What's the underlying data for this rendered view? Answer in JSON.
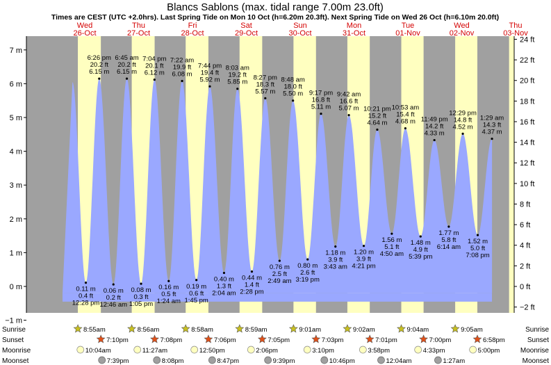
{
  "chart_data": {
    "type": "area",
    "title": "Blancs Sablons (max. tidal range 7.00m 23.0ft)",
    "subtitle": "Times are CEST (UTC +2.0hrs). Last Spring Tide on Mon 10 Oct (h=6.20m 20.3ft). Next Spring Tide on Wed 26 Oct (h=6.10m 20.0ft)",
    "days": [
      {
        "name": "Wed",
        "date": "26-Oct"
      },
      {
        "name": "Thu",
        "date": "27-Oct"
      },
      {
        "name": "Fri",
        "date": "28-Oct"
      },
      {
        "name": "Sat",
        "date": "29-Oct"
      },
      {
        "name": "Sun",
        "date": "30-Oct"
      },
      {
        "name": "Mon",
        "date": "31-Oct"
      },
      {
        "name": "Tue",
        "date": "01-Nov"
      },
      {
        "name": "Wed",
        "date": "02-Nov"
      },
      {
        "name": "Thu",
        "date": "03-Nov"
      }
    ],
    "y_left_ticks": [
      "−1 m",
      "0 m",
      "1 m",
      "2 m",
      "3 m",
      "4 m",
      "5 m",
      "6 m",
      "7 m"
    ],
    "y_right_ticks": [
      "−2 ft",
      "0 ft",
      "2 ft",
      "4 ft",
      "6 ft",
      "8 ft",
      "10 ft",
      "12 ft",
      "14 ft",
      "16 ft",
      "18 ft",
      "20 ft",
      "22 ft",
      "24 ft"
    ],
    "ylim_m": [
      -1.2,
      7.4
    ],
    "tides": [
      {
        "type": "high",
        "day": 0,
        "h": 6.15,
        "time": "6:26 pm",
        "m": "6.15 m",
        "ft": "20.2 ft"
      },
      {
        "type": "low",
        "day": 0,
        "h": 0.11,
        "time": "12:28 pm",
        "m": "0.11 m",
        "ft": "0.4 ft"
      },
      {
        "type": "high",
        "day": 1,
        "h": 6.15,
        "time": "6:45 am",
        "m": "6.15 m",
        "ft": "20.2 ft"
      },
      {
        "type": "low",
        "day": 1,
        "h": 0.06,
        "time": "12:46 am",
        "m": "0.06 m",
        "ft": "0.2 ft"
      },
      {
        "type": "high",
        "day": 1,
        "h": 6.12,
        "time": "7:04 pm",
        "m": "6.12 m",
        "ft": "20.1 ft"
      },
      {
        "type": "low",
        "day": 1,
        "h": 0.08,
        "time": "1:05 pm",
        "m": "0.08 m",
        "ft": "0.3 ft"
      },
      {
        "type": "high",
        "day": 2,
        "h": 6.08,
        "time": "7:22 am",
        "m": "6.08 m",
        "ft": "19.9 ft"
      },
      {
        "type": "low",
        "day": 2,
        "h": 0.16,
        "time": "1:24 am",
        "m": "0.16 m",
        "ft": "0.5 ft"
      },
      {
        "type": "high",
        "day": 2,
        "h": 5.92,
        "time": "7:44 pm",
        "m": "5.92 m",
        "ft": "19.4 ft"
      },
      {
        "type": "low",
        "day": 2,
        "h": 0.19,
        "time": "1:45 pm",
        "m": "0.19 m",
        "ft": "0.6 ft"
      },
      {
        "type": "high",
        "day": 3,
        "h": 5.85,
        "time": "8:03 am",
        "m": "5.85 m",
        "ft": "19.2 ft"
      },
      {
        "type": "low",
        "day": 3,
        "h": 0.4,
        "time": "2:04 am",
        "m": "0.40 m",
        "ft": "1.3 ft"
      },
      {
        "type": "high",
        "day": 3,
        "h": 5.57,
        "time": "8:27 pm",
        "m": "5.57 m",
        "ft": "18.3 ft"
      },
      {
        "type": "low",
        "day": 3,
        "h": 0.44,
        "time": "2:28 pm",
        "m": "0.44 m",
        "ft": "1.4 ft"
      },
      {
        "type": "high",
        "day": 4,
        "h": 5.5,
        "time": "8:48 am",
        "m": "5.50 m",
        "ft": "18.0 ft"
      },
      {
        "type": "low",
        "day": 4,
        "h": 0.76,
        "time": "2:49 am",
        "m": "0.76 m",
        "ft": "2.5 ft"
      },
      {
        "type": "high",
        "day": 4,
        "h": 5.11,
        "time": "9:17 pm",
        "m": "5.11 m",
        "ft": "16.8 ft"
      },
      {
        "type": "low",
        "day": 4,
        "h": 0.8,
        "time": "3:19 pm",
        "m": "0.80 m",
        "ft": "2.6 ft"
      },
      {
        "type": "high",
        "day": 5,
        "h": 5.07,
        "time": "9:42 am",
        "m": "5.07 m",
        "ft": "16.6 ft"
      },
      {
        "type": "low",
        "day": 5,
        "h": 1.18,
        "time": "3:43 am",
        "m": "1.18 m",
        "ft": "3.9 ft"
      },
      {
        "type": "high",
        "day": 5,
        "h": 4.64,
        "time": "10:21 pm",
        "m": "4.64 m",
        "ft": "15.2 ft"
      },
      {
        "type": "low",
        "day": 5,
        "h": 1.2,
        "time": "4:21 pm",
        "m": "1.20 m",
        "ft": "3.9 ft"
      },
      {
        "type": "high",
        "day": 6,
        "h": 4.68,
        "time": "10:53 am",
        "m": "4.68 m",
        "ft": "15.4 ft"
      },
      {
        "type": "low",
        "day": 6,
        "h": 1.56,
        "time": "4:50 am",
        "m": "1.56 m",
        "ft": "5.1 ft"
      },
      {
        "type": "high",
        "day": 6,
        "h": 4.33,
        "time": "11:49 pm",
        "m": "4.33 m",
        "ft": "14.2 ft"
      },
      {
        "type": "low",
        "day": 6,
        "h": 1.48,
        "time": "5:39 pm",
        "m": "1.48 m",
        "ft": "4.9 ft"
      },
      {
        "type": "high",
        "day": 7,
        "h": 4.52,
        "time": "12:29 pm",
        "m": "4.52 m",
        "ft": "14.8 ft"
      },
      {
        "type": "low",
        "day": 7,
        "h": 1.77,
        "time": "6:14 am",
        "m": "1.77 m",
        "ft": "5.8 ft"
      },
      {
        "type": "low",
        "day": 7,
        "h": 1.52,
        "time": "7:08 pm",
        "m": "1.52 m",
        "ft": "5.0 ft"
      },
      {
        "type": "high",
        "day": 8,
        "h": 4.37,
        "time": "1:29 am",
        "m": "4.37 m",
        "ft": "14.3 ft"
      }
    ],
    "rows": {
      "sunrise_label": "Sunrise",
      "sunset_label": "Sunset",
      "moonrise_label": "Moonrise",
      "moonset_label": "Moonset",
      "sunrise": [
        "8:55am",
        "8:56am",
        "8:58am",
        "8:59am",
        "9:01am",
        "9:02am",
        "9:04am",
        "9:05am"
      ],
      "sunset": [
        "7:10pm",
        "7:08pm",
        "7:06pm",
        "7:05pm",
        "7:03pm",
        "7:01pm",
        "7:00pm",
        "6:58pm"
      ],
      "moonrise": [
        "10:04am",
        "11:27am",
        "12:50pm",
        "2:06pm",
        "3:10pm",
        "3:58pm",
        "4:33pm",
        "5:00pm"
      ],
      "moonset": [
        "7:39pm",
        "8:08pm",
        "8:47pm",
        "9:39pm",
        "10:46pm",
        "12:04am",
        "1:27am"
      ]
    },
    "colors": {
      "water": "#9aa8ff",
      "day": "#ffffc0",
      "night": "#a0a0a0",
      "day_name": "#d40000",
      "sunrise_star": "#c8c020",
      "sunset_star": "#e05018",
      "moonrise": "#ffffc0",
      "moonset": "#a0a0a0"
    }
  }
}
